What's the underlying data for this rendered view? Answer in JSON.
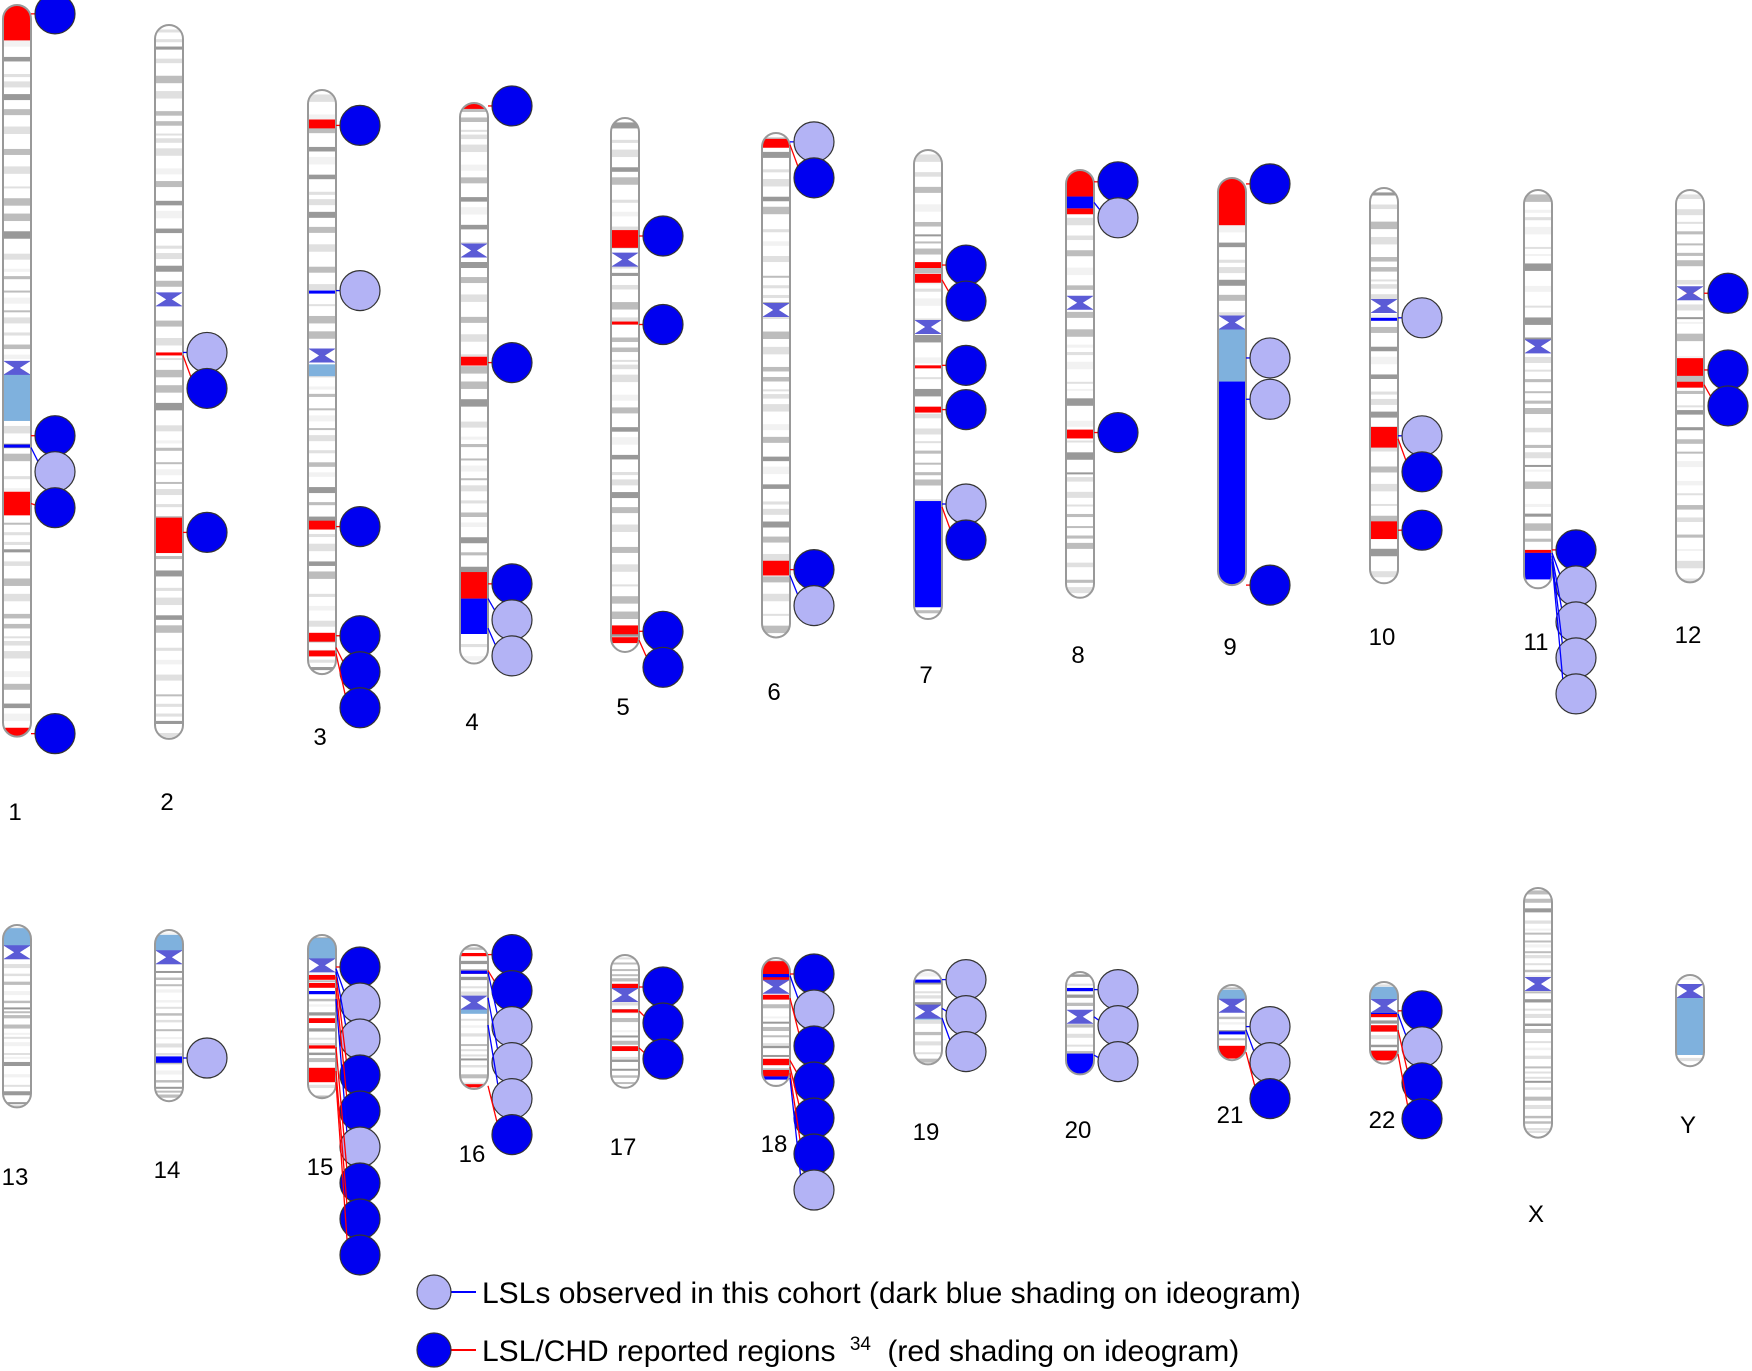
{
  "colors": {
    "red_region": "#ff0000",
    "observed_band": "#0000ff",
    "light_blue_region": "#7fb1dd",
    "marker_light": "#b3b3f5",
    "marker_dark": "#0000f0",
    "band_dark": "#999999",
    "band_mid": "#bdbdbd",
    "band_light": "#e0e0e0",
    "outline": "#999999",
    "centromere": "#5b5bd6"
  },
  "legend": {
    "observed_label": "LSLs observed in this cohort (dark blue shading on ideogram)",
    "reported_label_main": "LSL/CHD reported regions",
    "reported_label_ref": "34",
    "reported_label_tail": "(red shading on ideogram)"
  },
  "chromosomes": [
    {
      "name": "1",
      "len": 248,
      "cen": 123,
      "red": [
        [
          0,
          12
        ],
        [
          165,
          173
        ],
        [
          245,
          248
        ]
      ],
      "blue": [
        [
          149,
          150
        ]
      ],
      "lightblue": [
        [
          125,
          141
        ]
      ],
      "markers": [
        {
          "type": "dark",
          "at": 3
        },
        {
          "type": "dark",
          "at": 146
        },
        {
          "type": "light",
          "at": 150
        },
        {
          "type": "dark",
          "at": 169
        },
        {
          "type": "dark",
          "at": 247
        }
      ]
    },
    {
      "name": "2",
      "len": 242,
      "cen": 93,
      "red": [
        [
          111,
          112
        ],
        [
          167,
          179
        ]
      ],
      "blue": [],
      "lightblue": [],
      "markers": [
        {
          "type": "light",
          "at": 111
        },
        {
          "type": "dark",
          "at": 112
        },
        {
          "type": "dark",
          "at": 172
        }
      ]
    },
    {
      "name": "3",
      "len": 198,
      "cen": 90,
      "red": [
        [
          10,
          13
        ],
        [
          146,
          149
        ],
        [
          184,
          187
        ],
        [
          190,
          192
        ]
      ],
      "blue": [
        [
          68,
          69
        ]
      ],
      "lightblue": [
        [
          93,
          97
        ]
      ],
      "markers": [
        {
          "type": "dark",
          "at": 12
        },
        {
          "type": "light",
          "at": 68
        },
        {
          "type": "dark",
          "at": 148
        },
        {
          "type": "dark",
          "at": 185
        },
        {
          "type": "dark",
          "at": 189
        },
        {
          "type": "dark",
          "at": 191
        }
      ]
    },
    {
      "name": "4",
      "len": 190,
      "cen": 50,
      "red": [
        [
          0,
          2
        ],
        [
          86,
          89
        ],
        [
          159,
          168
        ]
      ],
      "blue": [
        [
          168,
          180
        ]
      ],
      "lightblue": [],
      "markers": [
        {
          "type": "dark",
          "at": 1
        },
        {
          "type": "dark",
          "at": 88
        },
        {
          "type": "dark",
          "at": 163
        },
        {
          "type": "light",
          "at": 168
        },
        {
          "type": "light",
          "at": 178
        }
      ]
    },
    {
      "name": "5",
      "len": 181,
      "cen": 48,
      "red": [
        [
          38,
          44
        ],
        [
          69,
          70
        ],
        [
          172,
          175
        ],
        [
          176,
          178
        ]
      ],
      "blue": [],
      "lightblue": [],
      "markers": [
        {
          "type": "dark",
          "at": 40
        },
        {
          "type": "dark",
          "at": 70
        },
        {
          "type": "dark",
          "at": 174
        },
        {
          "type": "dark",
          "at": 177
        }
      ]
    },
    {
      "name": "6",
      "len": 171,
      "cen": 60,
      "red": [
        [
          2,
          5
        ],
        [
          145,
          150
        ]
      ],
      "blue": [],
      "lightblue": [],
      "markers": [
        {
          "type": "light",
          "at": 3
        },
        {
          "type": "dark",
          "at": 4
        },
        {
          "type": "dark",
          "at": 148
        },
        {
          "type": "light",
          "at": 150
        }
      ]
    },
    {
      "name": "7",
      "len": 159,
      "cen": 60,
      "red": [
        [
          38,
          40
        ],
        [
          42,
          45
        ],
        [
          73,
          74
        ],
        [
          87,
          89
        ]
      ],
      "blue": [
        [
          119,
          155
        ]
      ],
      "lightblue": [],
      "markers": [
        {
          "type": "dark",
          "at": 39
        },
        {
          "type": "dark",
          "at": 44
        },
        {
          "type": "dark",
          "at": 73
        },
        {
          "type": "dark",
          "at": 88
        },
        {
          "type": "light",
          "at": 120
        },
        {
          "type": "dark",
          "at": 121
        }
      ]
    },
    {
      "name": "8",
      "len": 145,
      "cen": 45,
      "red": [
        [
          0,
          9
        ],
        [
          13,
          15
        ],
        [
          88,
          91
        ]
      ],
      "blue": [
        [
          9,
          13
        ]
      ],
      "lightblue": [],
      "markers": [
        {
          "type": "dark",
          "at": 4
        },
        {
          "type": "light",
          "at": 11
        },
        {
          "type": "dark",
          "at": 89
        }
      ]
    },
    {
      "name": "9",
      "len": 138,
      "cen": 49,
      "red": [
        [
          0,
          16
        ]
      ],
      "blue": [
        [
          69,
          138
        ]
      ],
      "lightblue": [
        [
          50,
          69
        ]
      ],
      "markers": [
        {
          "type": "dark",
          "at": 2
        },
        {
          "type": "light",
          "at": 61
        },
        {
          "type": "light",
          "at": 75
        },
        {
          "type": "dark",
          "at": 138
        }
      ]
    },
    {
      "name": "10",
      "len": 134,
      "cen": 40,
      "red": [
        [
          81,
          88
        ],
        [
          113,
          119
        ]
      ],
      "blue": [
        [
          44,
          45
        ]
      ],
      "lightblue": [],
      "markers": [
        {
          "type": "light",
          "at": 44
        },
        {
          "type": "light",
          "at": 84
        },
        {
          "type": "dark",
          "at": 85
        },
        {
          "type": "dark",
          "at": 116
        }
      ]
    },
    {
      "name": "11",
      "len": 135,
      "cen": 53,
      "red": [
        [
          122,
          123
        ]
      ],
      "blue": [
        [
          123,
          132
        ]
      ],
      "lightblue": [],
      "markers": [
        {
          "type": "dark",
          "at": 122
        },
        {
          "type": "light",
          "at": 123
        },
        {
          "type": "light",
          "at": 124
        },
        {
          "type": "light",
          "at": 125
        },
        {
          "type": "light",
          "at": 126
        }
      ]
    },
    {
      "name": "12",
      "len": 133,
      "cen": 35,
      "red": [
        [
          34,
          36
        ],
        [
          57,
          63
        ],
        [
          65,
          67
        ]
      ],
      "blue": [],
      "lightblue": [],
      "markers": [
        {
          "type": "dark",
          "at": 35
        },
        {
          "type": "dark",
          "at": 61
        },
        {
          "type": "dark",
          "at": 66
        }
      ]
    },
    {
      "name": "13",
      "len": 114,
      "cen": 17,
      "red": [],
      "blue": [],
      "lightblue": [
        [
          2,
          15
        ]
      ],
      "markers": []
    },
    {
      "name": "14",
      "len": 107,
      "cen": 17,
      "red": [],
      "blue": [
        [
          79,
          83
        ]
      ],
      "lightblue": [
        [
          3,
          13
        ]
      ],
      "markers": [
        {
          "type": "light",
          "at": 80
        }
      ]
    },
    {
      "name": "15",
      "len": 102,
      "cen": 19,
      "red": [
        [
          25,
          28
        ],
        [
          30,
          33
        ],
        [
          52,
          55
        ],
        [
          69,
          71
        ],
        [
          83,
          92
        ]
      ],
      "blue": [
        [
          19,
          21
        ],
        [
          35,
          37
        ]
      ],
      "lightblue": [
        [
          2,
          17
        ]
      ],
      "markers": [
        {
          "type": "dark",
          "at": 20
        },
        {
          "type": "light",
          "at": 21
        },
        {
          "type": "light",
          "at": 23
        },
        {
          "type": "dark",
          "at": 26
        },
        {
          "type": "dark",
          "at": 33
        },
        {
          "type": "light",
          "at": 40
        },
        {
          "type": "dark",
          "at": 70
        },
        {
          "type": "dark",
          "at": 85
        },
        {
          "type": "dark",
          "at": 92
        }
      ]
    },
    {
      "name": "16",
      "len": 90,
      "cen": 36,
      "red": [
        [
          5,
          7
        ],
        [
          16,
          18
        ],
        [
          87,
          89
        ]
      ],
      "blue": [
        [
          16,
          18
        ]
      ],
      "lightblue": [
        [
          36,
          43
        ]
      ],
      "markers": [
        {
          "type": "dark",
          "at": 6
        },
        {
          "type": "dark",
          "at": 16
        },
        {
          "type": "light",
          "at": 17
        },
        {
          "type": "light",
          "at": 33
        },
        {
          "type": "light",
          "at": 50
        },
        {
          "type": "dark",
          "at": 88
        }
      ]
    },
    {
      "name": "17",
      "len": 83,
      "cen": 25,
      "red": [
        [
          18,
          22
        ],
        [
          34,
          36
        ],
        [
          57,
          60
        ]
      ],
      "blue": [],
      "lightblue": [],
      "markers": [
        {
          "type": "dark",
          "at": 20
        },
        {
          "type": "dark",
          "at": 35
        },
        {
          "type": "dark",
          "at": 58
        }
      ]
    },
    {
      "name": "18",
      "len": 80,
      "cen": 18,
      "red": [
        [
          2,
          16
        ],
        [
          23,
          26
        ],
        [
          63,
          67
        ],
        [
          70,
          74
        ]
      ],
      "blue": [
        [
          10,
          12
        ],
        [
          74,
          76
        ]
      ],
      "lightblue": [],
      "markers": [
        {
          "type": "dark",
          "at": 10
        },
        {
          "type": "light",
          "at": 11
        },
        {
          "type": "dark",
          "at": 25
        },
        {
          "type": "dark",
          "at": 64
        },
        {
          "type": "dark",
          "at": 68
        },
        {
          "type": "dark",
          "at": 72
        },
        {
          "type": "light",
          "at": 75
        }
      ]
    },
    {
      "name": "19",
      "len": 59,
      "cen": 26,
      "red": [],
      "blue": [
        [
          6,
          7
        ],
        [
          23,
          24
        ],
        [
          28,
          29
        ]
      ],
      "blue_note": "",
      "lightblue": [
        [
          29,
          31
        ]
      ],
      "markers": [
        {
          "type": "light",
          "at": 6
        },
        {
          "type": "light",
          "at": 24
        },
        {
          "type": "light",
          "at": 30
        }
      ]
    },
    {
      "name": "20",
      "len": 64,
      "cen": 28,
      "red": [],
      "blue": [
        [
          10,
          12
        ],
        [
          51,
          64
        ]
      ],
      "lightblue": [],
      "markers": [
        {
          "type": "light",
          "at": 11
        },
        {
          "type": "light",
          "at": 28
        },
        {
          "type": "light",
          "at": 52
        }
      ]
    },
    {
      "name": "21",
      "len": 47,
      "cen": 13,
      "red": [
        [
          38,
          46
        ]
      ],
      "blue": [
        [
          29,
          30
        ]
      ],
      "lightblue": [
        [
          3,
          11
        ]
      ],
      "markers": [
        {
          "type": "light",
          "at": 26
        },
        {
          "type": "light",
          "at": 28
        },
        {
          "type": "dark",
          "at": 42
        }
      ]
    },
    {
      "name": "22",
      "len": 51,
      "cen": 15,
      "red": [
        [
          18,
          22
        ],
        [
          27,
          31
        ],
        [
          43,
          49
        ]
      ],
      "blue": [
        [
          18,
          20
        ]
      ],
      "lightblue": [
        [
          3,
          12
        ]
      ],
      "markers": [
        {
          "type": "dark",
          "at": 18
        },
        {
          "type": "light",
          "at": 20
        },
        {
          "type": "dark",
          "at": 30
        },
        {
          "type": "dark",
          "at": 45
        }
      ]
    },
    {
      "name": "X",
      "len": 156,
      "cen": 60,
      "red": [],
      "blue": [],
      "lightblue": [],
      "markers": []
    },
    {
      "name": "Y",
      "len": 57,
      "cen": 10,
      "red": [],
      "blue": [],
      "lightblue": [
        [
          11,
          50
        ]
      ],
      "markers": []
    }
  ]
}
